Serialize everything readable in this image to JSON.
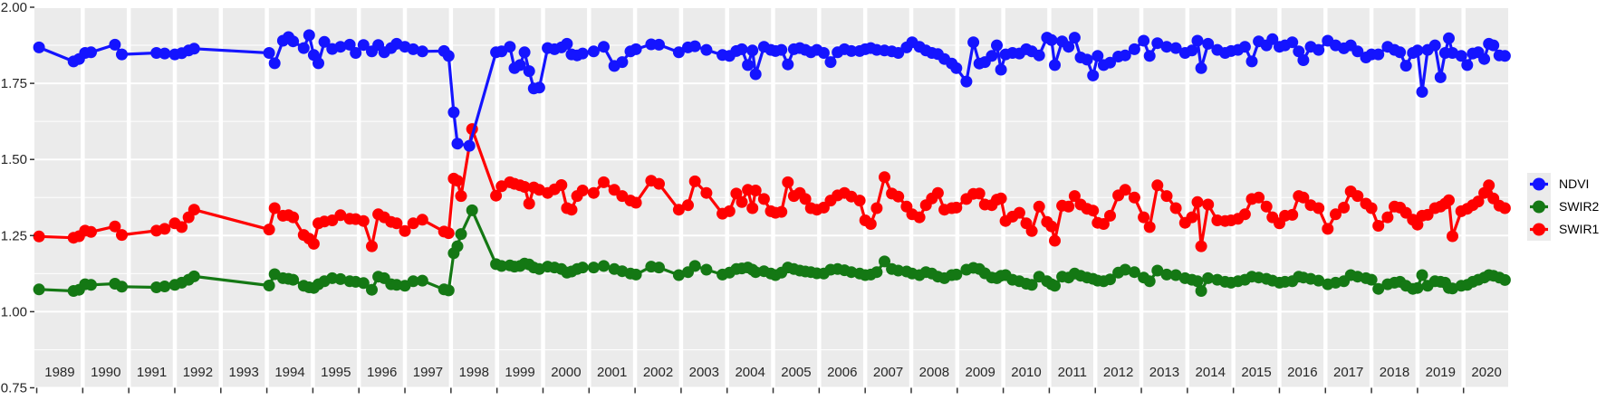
{
  "chart_data": {
    "type": "line",
    "xlabel": "",
    "ylabel": "",
    "grid": true,
    "legend_position": "right",
    "panel_bg": "#EBEBEB",
    "grid_color": "#FFFFFF",
    "axis_text_color": "#262626",
    "xlim": [
      1988.95,
      2020.97
    ],
    "ylim": [
      0.75,
      2.0
    ],
    "y_ticks": [
      {
        "value": 2.0,
        "label": "2.00"
      },
      {
        "value": 1.75,
        "label": "1.75"
      },
      {
        "value": 1.5,
        "label": "1.50"
      },
      {
        "value": 1.25,
        "label": "1.25"
      },
      {
        "value": 1.0,
        "label": "1.00"
      },
      {
        "value": 0.75,
        "label": "0.75"
      }
    ],
    "y_minor_ticks": [
      1.875,
      1.625,
      1.375,
      1.125,
      0.875
    ],
    "x_year_labels": [
      1989,
      1990,
      1991,
      1992,
      1993,
      1994,
      1995,
      1996,
      1997,
      1998,
      1999,
      2000,
      2001,
      2002,
      2003,
      2004,
      2005,
      2006,
      2007,
      2008,
      2009,
      2010,
      2011,
      2012,
      2013,
      2014,
      2015,
      2016,
      2017,
      2018,
      2019,
      2020
    ],
    "series": [
      {
        "name": "NDVI",
        "color": "#1414FF",
        "column": 1
      },
      {
        "name": "SWIR2",
        "color": "#147814",
        "column": 2
      },
      {
        "name": "SWIR1",
        "color": "#FF0000",
        "column": 3
      }
    ],
    "draw_order": [
      1,
      2,
      0
    ],
    "points": [
      [
        1989.05,
        1.868,
        1.073,
        1.247
      ],
      [
        1989.8,
        1.822,
        1.068,
        1.243
      ],
      [
        1989.92,
        1.83,
        1.072,
        1.248
      ],
      [
        1990.05,
        1.85,
        1.09,
        1.266
      ],
      [
        1990.18,
        1.852,
        1.088,
        1.262
      ],
      [
        1990.7,
        1.877,
        1.092,
        1.28
      ],
      [
        1990.85,
        1.845,
        1.082,
        1.252
      ],
      [
        1991.6,
        1.85,
        1.08,
        1.266
      ],
      [
        1991.78,
        1.848,
        1.083,
        1.272
      ],
      [
        1992.0,
        1.845,
        1.088,
        1.29
      ],
      [
        1992.15,
        1.849,
        1.095,
        1.278
      ],
      [
        1992.3,
        1.858,
        1.105,
        1.31
      ],
      [
        1992.42,
        1.864,
        1.116,
        1.335
      ],
      [
        1994.05,
        1.85,
        1.086,
        1.27
      ],
      [
        1994.17,
        1.816,
        1.123,
        1.34
      ],
      [
        1994.35,
        1.89,
        1.11,
        1.315
      ],
      [
        1994.47,
        1.902,
        1.108,
        1.317
      ],
      [
        1994.57,
        1.888,
        1.105,
        1.31
      ],
      [
        1994.8,
        1.866,
        1.085,
        1.252
      ],
      [
        1994.92,
        1.908,
        1.08,
        1.24
      ],
      [
        1995.02,
        1.843,
        1.078,
        1.223
      ],
      [
        1995.12,
        1.816,
        1.09,
        1.29
      ],
      [
        1995.25,
        1.886,
        1.1,
        1.296
      ],
      [
        1995.42,
        1.863,
        1.11,
        1.3
      ],
      [
        1995.6,
        1.87,
        1.107,
        1.317
      ],
      [
        1995.8,
        1.877,
        1.1,
        1.305
      ],
      [
        1995.93,
        1.85,
        1.098,
        1.304
      ],
      [
        1996.1,
        1.876,
        1.094,
        1.298
      ],
      [
        1996.28,
        1.855,
        1.072,
        1.215
      ],
      [
        1996.42,
        1.876,
        1.115,
        1.32
      ],
      [
        1996.55,
        1.852,
        1.11,
        1.31
      ],
      [
        1996.7,
        1.866,
        1.09,
        1.295
      ],
      [
        1996.82,
        1.88,
        1.088,
        1.29
      ],
      [
        1997.0,
        1.87,
        1.085,
        1.265
      ],
      [
        1997.18,
        1.862,
        1.1,
        1.29
      ],
      [
        1997.38,
        1.855,
        1.102,
        1.302
      ],
      [
        1997.85,
        1.856,
        1.073,
        1.263
      ],
      [
        1997.95,
        1.84,
        1.07,
        1.258
      ],
      [
        1998.06,
        1.655,
        1.192,
        1.437
      ],
      [
        1998.14,
        1.552,
        1.215,
        1.43
      ],
      [
        1998.22,
        null,
        1.255,
        1.38
      ],
      [
        1998.4,
        1.545,
        null,
        null
      ],
      [
        1998.46,
        null,
        1.333,
        1.6
      ],
      [
        1998.98,
        1.852,
        1.156,
        1.381
      ],
      [
        1999.1,
        1.855,
        1.15,
        1.412
      ],
      [
        1999.28,
        1.87,
        1.152,
        1.425
      ],
      [
        1999.38,
        1.8,
        1.148,
        1.42
      ],
      [
        1999.5,
        1.81,
        1.15,
        1.415
      ],
      [
        1999.6,
        1.852,
        1.158,
        1.41
      ],
      [
        1999.7,
        1.79,
        1.155,
        1.355
      ],
      [
        1999.8,
        1.733,
        1.145,
        1.408
      ],
      [
        1999.92,
        1.736,
        1.14,
        1.4
      ],
      [
        2000.1,
        1.866,
        1.148,
        1.39
      ],
      [
        2000.25,
        1.862,
        1.145,
        1.402
      ],
      [
        2000.4,
        1.868,
        1.14,
        1.416
      ],
      [
        2000.52,
        1.88,
        1.128,
        1.34
      ],
      [
        2000.62,
        1.845,
        1.132,
        1.335
      ],
      [
        2000.74,
        1.842,
        1.14,
        1.38
      ],
      [
        2000.86,
        1.848,
        1.145,
        1.398
      ],
      [
        2001.1,
        1.855,
        1.145,
        1.39
      ],
      [
        2001.32,
        1.87,
        1.15,
        1.425
      ],
      [
        2001.55,
        1.807,
        1.14,
        1.4
      ],
      [
        2001.72,
        1.82,
        1.133,
        1.38
      ],
      [
        2001.9,
        1.855,
        1.125,
        1.365
      ],
      [
        2002.02,
        1.862,
        1.122,
        1.358
      ],
      [
        2002.35,
        1.878,
        1.148,
        1.43
      ],
      [
        2002.52,
        1.877,
        1.145,
        1.42
      ],
      [
        2002.95,
        1.852,
        1.12,
        1.335
      ],
      [
        2003.15,
        1.868,
        1.13,
        1.35
      ],
      [
        2003.3,
        1.872,
        1.15,
        1.428
      ],
      [
        2003.55,
        1.86,
        1.138,
        1.39
      ],
      [
        2003.9,
        1.843,
        1.122,
        1.322
      ],
      [
        2004.05,
        1.84,
        1.128,
        1.33
      ],
      [
        2004.2,
        1.856,
        1.14,
        1.388
      ],
      [
        2004.32,
        1.862,
        1.142,
        1.36
      ],
      [
        2004.45,
        1.81,
        1.145,
        1.4
      ],
      [
        2004.55,
        1.858,
        1.138,
        1.34
      ],
      [
        2004.62,
        1.78,
        1.13,
        1.398
      ],
      [
        2004.8,
        1.87,
        1.133,
        1.37
      ],
      [
        2004.95,
        1.86,
        1.125,
        1.33
      ],
      [
        2005.05,
        1.856,
        1.12,
        1.325
      ],
      [
        2005.18,
        1.86,
        1.128,
        1.328
      ],
      [
        2005.32,
        1.812,
        1.145,
        1.425
      ],
      [
        2005.45,
        1.862,
        1.14,
        1.38
      ],
      [
        2005.58,
        1.866,
        1.135,
        1.39
      ],
      [
        2005.7,
        1.86,
        1.132,
        1.37
      ],
      [
        2005.82,
        1.852,
        1.13,
        1.34
      ],
      [
        2005.95,
        1.86,
        1.126,
        1.335
      ],
      [
        2006.1,
        1.85,
        1.125,
        1.342
      ],
      [
        2006.25,
        1.82,
        1.138,
        1.365
      ],
      [
        2006.4,
        1.852,
        1.14,
        1.382
      ],
      [
        2006.55,
        1.862,
        1.136,
        1.39
      ],
      [
        2006.7,
        1.856,
        1.13,
        1.378
      ],
      [
        2006.88,
        1.856,
        1.125,
        1.365
      ],
      [
        2007.0,
        1.862,
        1.12,
        1.3
      ],
      [
        2007.12,
        1.866,
        1.122,
        1.288
      ],
      [
        2007.25,
        1.86,
        1.13,
        1.34
      ],
      [
        2007.42,
        1.858,
        1.165,
        1.442
      ],
      [
        2007.58,
        1.855,
        1.14,
        1.388
      ],
      [
        2007.72,
        1.85,
        1.135,
        1.378
      ],
      [
        2007.9,
        1.868,
        1.132,
        1.345
      ],
      [
        2008.02,
        1.885,
        1.125,
        1.32
      ],
      [
        2008.18,
        1.87,
        1.12,
        1.31
      ],
      [
        2008.32,
        1.858,
        1.13,
        1.35
      ],
      [
        2008.45,
        1.85,
        1.125,
        1.372
      ],
      [
        2008.58,
        1.846,
        1.115,
        1.39
      ],
      [
        2008.72,
        1.83,
        1.11,
        1.335
      ],
      [
        2008.88,
        1.815,
        1.12,
        1.34
      ],
      [
        2008.98,
        1.8,
        1.122,
        1.342
      ],
      [
        2009.2,
        1.756,
        1.138,
        1.37
      ],
      [
        2009.35,
        1.885,
        1.144,
        1.387
      ],
      [
        2009.48,
        1.815,
        1.14,
        1.388
      ],
      [
        2009.6,
        1.82,
        1.126,
        1.352
      ],
      [
        2009.75,
        1.84,
        1.112,
        1.35
      ],
      [
        2009.86,
        1.875,
        1.11,
        1.368
      ],
      [
        2009.95,
        1.795,
        1.118,
        1.372
      ],
      [
        2010.05,
        1.845,
        1.12,
        1.298
      ],
      [
        2010.2,
        1.85,
        1.105,
        1.312
      ],
      [
        2010.35,
        1.848,
        1.1,
        1.325
      ],
      [
        2010.5,
        1.862,
        1.092,
        1.29
      ],
      [
        2010.62,
        1.855,
        1.088,
        1.265
      ],
      [
        2010.78,
        1.842,
        1.115,
        1.345
      ],
      [
        2010.95,
        1.9,
        1.1,
        1.295
      ],
      [
        2011.05,
        1.892,
        1.09,
        1.28
      ],
      [
        2011.12,
        1.81,
        1.085,
        1.233
      ],
      [
        2011.28,
        1.888,
        1.115,
        1.348
      ],
      [
        2011.42,
        1.87,
        1.112,
        1.345
      ],
      [
        2011.55,
        1.9,
        1.125,
        1.38
      ],
      [
        2011.68,
        1.835,
        1.118,
        1.352
      ],
      [
        2011.82,
        1.828,
        1.112,
        1.338
      ],
      [
        2011.95,
        1.776,
        1.108,
        1.332
      ],
      [
        2012.05,
        1.84,
        1.102,
        1.292
      ],
      [
        2012.18,
        1.81,
        1.1,
        1.288
      ],
      [
        2012.32,
        1.818,
        1.106,
        1.315
      ],
      [
        2012.5,
        1.838,
        1.128,
        1.382
      ],
      [
        2012.65,
        1.842,
        1.138,
        1.4
      ],
      [
        2012.85,
        1.862,
        1.13,
        1.375
      ],
      [
        2013.05,
        1.89,
        1.112,
        1.31
      ],
      [
        2013.18,
        1.84,
        1.1,
        1.278
      ],
      [
        2013.35,
        1.882,
        1.135,
        1.415
      ],
      [
        2013.55,
        1.87,
        1.122,
        1.38
      ],
      [
        2013.75,
        1.866,
        1.12,
        1.34
      ],
      [
        2013.95,
        1.85,
        1.11,
        1.292
      ],
      [
        2014.1,
        1.858,
        1.105,
        1.31
      ],
      [
        2014.22,
        1.89,
        1.1,
        1.36
      ],
      [
        2014.3,
        1.8,
        1.068,
        1.215
      ],
      [
        2014.45,
        1.88,
        1.11,
        1.352
      ],
      [
        2014.65,
        1.86,
        1.105,
        1.3
      ],
      [
        2014.82,
        1.85,
        1.098,
        1.298
      ],
      [
        2014.95,
        1.856,
        1.095,
        1.3
      ],
      [
        2015.1,
        1.86,
        1.1,
        1.305
      ],
      [
        2015.25,
        1.87,
        1.105,
        1.32
      ],
      [
        2015.4,
        1.822,
        1.115,
        1.37
      ],
      [
        2015.55,
        1.888,
        1.112,
        1.375
      ],
      [
        2015.72,
        1.875,
        1.108,
        1.345
      ],
      [
        2015.85,
        1.895,
        1.102,
        1.31
      ],
      [
        2016.0,
        1.87,
        1.095,
        1.29
      ],
      [
        2016.12,
        1.875,
        1.098,
        1.315
      ],
      [
        2016.28,
        1.885,
        1.1,
        1.318
      ],
      [
        2016.42,
        1.855,
        1.115,
        1.38
      ],
      [
        2016.52,
        1.826,
        1.112,
        1.375
      ],
      [
        2016.68,
        1.87,
        1.108,
        1.35
      ],
      [
        2016.85,
        1.86,
        1.102,
        1.34
      ],
      [
        2017.05,
        1.89,
        1.09,
        1.272
      ],
      [
        2017.22,
        1.875,
        1.095,
        1.32
      ],
      [
        2017.4,
        1.865,
        1.1,
        1.342
      ],
      [
        2017.55,
        1.875,
        1.12,
        1.395
      ],
      [
        2017.7,
        1.855,
        1.115,
        1.38
      ],
      [
        2017.88,
        1.835,
        1.11,
        1.355
      ],
      [
        2018.0,
        1.845,
        1.105,
        1.34
      ],
      [
        2018.15,
        1.845,
        1.075,
        1.282
      ],
      [
        2018.35,
        1.87,
        1.09,
        1.31
      ],
      [
        2018.5,
        1.86,
        1.095,
        1.345
      ],
      [
        2018.62,
        1.852,
        1.098,
        1.342
      ],
      [
        2018.75,
        1.808,
        1.085,
        1.325
      ],
      [
        2018.9,
        1.85,
        1.075,
        1.302
      ],
      [
        2019.0,
        1.858,
        1.078,
        1.286
      ],
      [
        2019.1,
        1.722,
        1.12,
        1.315
      ],
      [
        2019.22,
        1.86,
        1.085,
        1.318
      ],
      [
        2019.38,
        1.875,
        1.1,
        1.34
      ],
      [
        2019.5,
        1.77,
        1.098,
        1.345
      ],
      [
        2019.6,
        1.85,
        1.095,
        1.355
      ],
      [
        2019.68,
        1.898,
        1.078,
        1.366
      ],
      [
        2019.76,
        1.85,
        1.076,
        1.248
      ],
      [
        2019.95,
        1.84,
        1.085,
        1.33
      ],
      [
        2020.08,
        1.81,
        1.088,
        1.338
      ],
      [
        2020.2,
        1.848,
        1.098,
        1.35
      ],
      [
        2020.32,
        1.852,
        1.105,
        1.362
      ],
      [
        2020.45,
        1.83,
        1.112,
        1.39
      ],
      [
        2020.55,
        1.88,
        1.12,
        1.415
      ],
      [
        2020.65,
        1.875,
        1.118,
        1.372
      ],
      [
        2020.78,
        1.842,
        1.112,
        1.348
      ],
      [
        2020.9,
        1.84,
        1.104,
        1.34
      ]
    ]
  },
  "legend": {
    "items": [
      {
        "label": "NDVI",
        "color": "#1414FF"
      },
      {
        "label": "SWIR2",
        "color": "#147814"
      },
      {
        "label": "SWIR1",
        "color": "#FF0000"
      }
    ]
  }
}
